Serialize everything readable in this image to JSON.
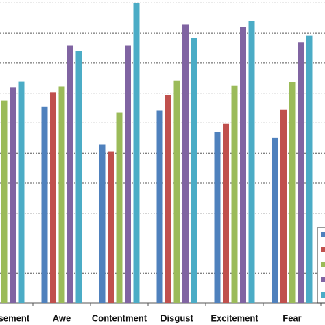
{
  "chart_data": {
    "type": "bar",
    "grid": true,
    "categories": [
      "Amusement",
      "Awe",
      "Contentment",
      "Disgust",
      "Excitement",
      "Fear"
    ],
    "series": [
      {
        "color": "#4f81bd",
        "values": [
          null,
          6.54,
          5.29,
          6.41,
          5.7,
          5.51
        ]
      },
      {
        "color": "#c0504d",
        "values": [
          null,
          7.03,
          5.06,
          6.93,
          5.97,
          6.45
        ]
      },
      {
        "color": "#9bbb59",
        "values": [
          6.75,
          7.21,
          6.34,
          7.41,
          7.25,
          7.37
        ]
      },
      {
        "color": "#8064a2",
        "values": [
          7.19,
          8.58,
          8.58,
          9.29,
          9.2,
          8.7
        ]
      },
      {
        "color": "#4bacc6",
        "values": [
          7.39,
          8.4,
          10.0,
          8.83,
          9.41,
          8.92
        ]
      }
    ],
    "ylim": [
      0,
      10.1
    ],
    "yticks": [
      0,
      1,
      2,
      3,
      4,
      5,
      6,
      7,
      8,
      9,
      10
    ]
  }
}
